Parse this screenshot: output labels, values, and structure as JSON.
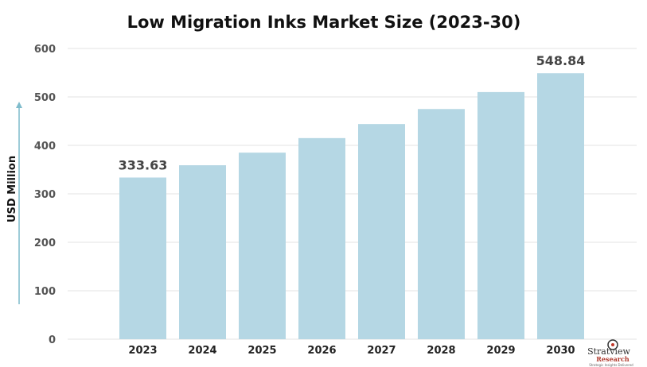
{
  "chart_data": {
    "type": "bar",
    "title": "Low Migration Inks Market Size (2023-30)",
    "xlabel": "",
    "ylabel": "USD Million",
    "ylim": [
      0,
      600
    ],
    "yticks": [
      0,
      100,
      200,
      300,
      400,
      500,
      600
    ],
    "grid": true,
    "categories": [
      "2023",
      "2024",
      "2025",
      "2026",
      "2027",
      "2028",
      "2029",
      "2030"
    ],
    "values": [
      333.63,
      359,
      385,
      415,
      444,
      475,
      510,
      548.84
    ],
    "data_labels": [
      {
        "index": 0,
        "text": "333.63"
      },
      {
        "index": 7,
        "text": "548.84"
      }
    ],
    "bar_color": "#b5d7e4",
    "axis_arrow_color": "#7fbccc"
  },
  "branding": {
    "logo_text": "Stratview Research",
    "tagline": "Strategic Insights Delivered"
  }
}
